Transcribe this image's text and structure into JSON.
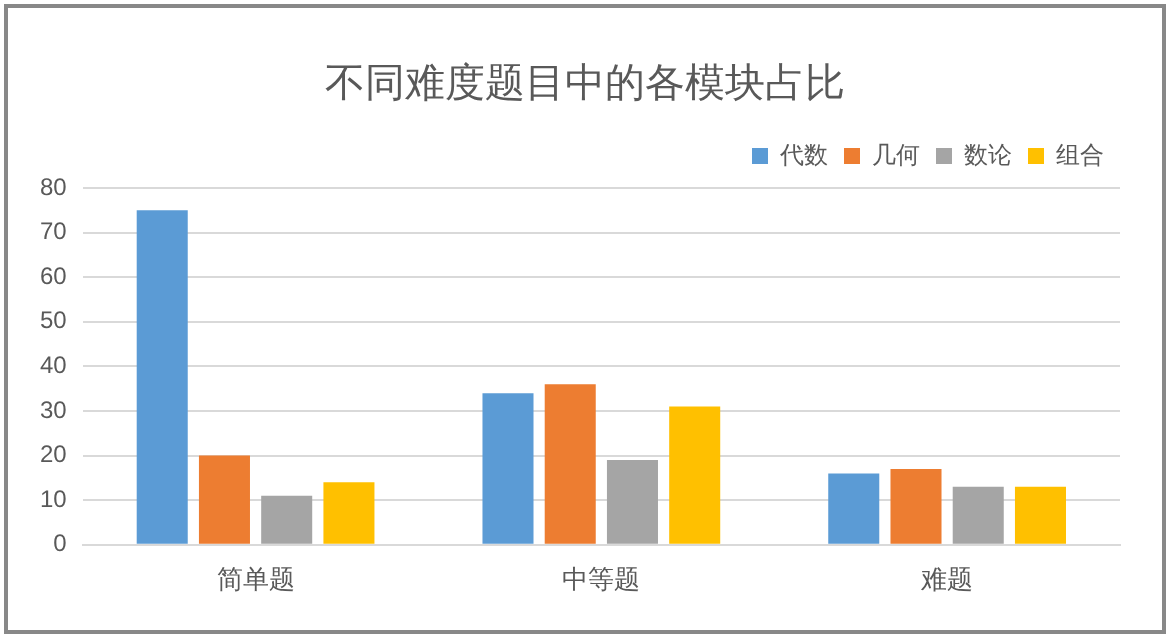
{
  "chart_data": {
    "type": "bar",
    "title": "不同难度题目中的各模块占比",
    "categories": [
      "简单题",
      "中等题",
      "难题"
    ],
    "series": [
      {
        "name": "代数",
        "color": "#5b9bd5",
        "values": [
          75,
          34,
          16
        ]
      },
      {
        "name": "几何",
        "color": "#ed7d31",
        "values": [
          20,
          36,
          17
        ]
      },
      {
        "name": "数论",
        "color": "#a5a5a5",
        "values": [
          11,
          19,
          13
        ]
      },
      {
        "name": "组合",
        "color": "#ffc000",
        "values": [
          14,
          31,
          13
        ]
      }
    ],
    "ylim": [
      0,
      80
    ],
    "yticks": [
      0,
      10,
      20,
      30,
      40,
      50,
      60,
      70,
      80
    ],
    "grid": "y",
    "legend": "top right"
  }
}
